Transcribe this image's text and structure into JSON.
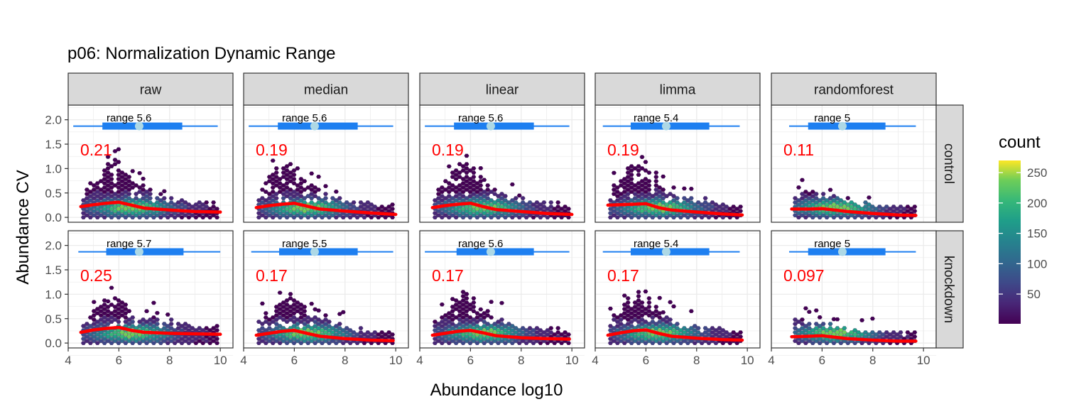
{
  "chart_data": {
    "type": "heatmap",
    "subtype": "faceted hexbin density with smooth trend and range boxplot",
    "title": "p06: Normalization Dynamic Range",
    "xlabel": "Abundance log10",
    "ylabel": "Abundance CV",
    "xlim": [
      4,
      10.5
    ],
    "ylim": [
      -0.1,
      2.3
    ],
    "x_ticks": [
      4,
      6,
      8,
      10
    ],
    "y_ticks": [
      0.0,
      0.5,
      1.0,
      1.5,
      2.0
    ],
    "x_tick_labels": [
      "4",
      "6",
      "8",
      "10"
    ],
    "y_tick_labels": [
      "0.0",
      "0.5",
      "1.0",
      "1.5",
      "2.0"
    ],
    "grid": true,
    "columns": [
      "raw",
      "median",
      "linear",
      "limma",
      "randomforest"
    ],
    "rows": [
      "control",
      "knockdown"
    ],
    "cv_color": "#ff0000",
    "trend_color": "#ff0000",
    "boxplot_color": "#1e7ff0",
    "median_point_color": "#add8e6",
    "legend": {
      "title": "count",
      "position": "right",
      "ticks": [
        50,
        100,
        150,
        200,
        250
      ],
      "tick_labels": [
        "50",
        "100",
        "150",
        "200",
        "250"
      ],
      "range": [
        1,
        270
      ],
      "palette": "viridis"
    },
    "panels": [
      {
        "row": "control",
        "column": "raw",
        "range_label": "range 5.6",
        "median_cv": "0.21",
        "box": {
          "min": 4.2,
          "q1": 5.35,
          "median": 6.8,
          "q3": 8.5,
          "max": 9.9
        },
        "trend": [
          [
            4.5,
            0.22
          ],
          [
            5.0,
            0.26
          ],
          [
            5.5,
            0.29
          ],
          [
            6.0,
            0.31
          ],
          [
            6.5,
            0.25
          ],
          [
            7.0,
            0.19
          ],
          [
            8.0,
            0.15
          ],
          [
            9.0,
            0.12
          ],
          [
            10.0,
            0.11
          ]
        ],
        "cloud": {
          "x_min": 4.6,
          "x_max": 9.95,
          "peak": 1.3,
          "peak_x": 5.8,
          "tail": 0.12
        }
      },
      {
        "row": "control",
        "column": "median",
        "range_label": "range 5.6",
        "median_cv": "0.19",
        "box": {
          "min": 4.2,
          "q1": 5.35,
          "median": 6.8,
          "q3": 8.5,
          "max": 9.9
        },
        "trend": [
          [
            4.5,
            0.2
          ],
          [
            5.0,
            0.24
          ],
          [
            5.5,
            0.27
          ],
          [
            6.0,
            0.29
          ],
          [
            6.5,
            0.23
          ],
          [
            7.0,
            0.17
          ],
          [
            8.0,
            0.13
          ],
          [
            9.0,
            0.09
          ],
          [
            10.0,
            0.06
          ]
        ],
        "cloud": {
          "x_min": 4.6,
          "x_max": 9.95,
          "peak": 1.3,
          "peak_x": 5.8,
          "tail": 0.09
        }
      },
      {
        "row": "control",
        "column": "linear",
        "range_label": "range 5.6",
        "median_cv": "0.19",
        "box": {
          "min": 4.2,
          "q1": 5.35,
          "median": 6.8,
          "q3": 8.5,
          "max": 9.9
        },
        "trend": [
          [
            4.5,
            0.2
          ],
          [
            5.0,
            0.24
          ],
          [
            5.5,
            0.27
          ],
          [
            6.0,
            0.29
          ],
          [
            6.5,
            0.22
          ],
          [
            7.0,
            0.16
          ],
          [
            8.0,
            0.12
          ],
          [
            9.0,
            0.08
          ],
          [
            10.0,
            0.06
          ]
        ],
        "cloud": {
          "x_min": 4.6,
          "x_max": 9.95,
          "peak": 1.3,
          "peak_x": 5.8,
          "tail": 0.09
        }
      },
      {
        "row": "control",
        "column": "limma",
        "range_label": "range 5.4",
        "median_cv": "0.19",
        "box": {
          "min": 4.3,
          "q1": 5.4,
          "median": 6.8,
          "q3": 8.5,
          "max": 9.7
        },
        "trend": [
          [
            4.5,
            0.25
          ],
          [
            5.0,
            0.26
          ],
          [
            5.5,
            0.27
          ],
          [
            6.0,
            0.28
          ],
          [
            6.5,
            0.2
          ],
          [
            7.0,
            0.15
          ],
          [
            8.0,
            0.11
          ],
          [
            9.0,
            0.07
          ],
          [
            9.8,
            0.05
          ]
        ],
        "cloud": {
          "x_min": 4.6,
          "x_max": 9.8,
          "peak": 1.3,
          "peak_x": 5.8,
          "tail": 0.08
        }
      },
      {
        "row": "control",
        "column": "randomforest",
        "range_label": "range 5",
        "median_cv": "0.11",
        "box": {
          "min": 4.7,
          "q1": 5.45,
          "median": 6.8,
          "q3": 8.5,
          "max": 9.7
        },
        "trend": [
          [
            4.8,
            0.17
          ],
          [
            5.5,
            0.17
          ],
          [
            6.0,
            0.18
          ],
          [
            6.5,
            0.15
          ],
          [
            7.0,
            0.12
          ],
          [
            8.0,
            0.08
          ],
          [
            9.0,
            0.05
          ],
          [
            9.7,
            0.04
          ]
        ],
        "cloud": {
          "x_min": 4.8,
          "x_max": 9.7,
          "peak": 0.6,
          "peak_x": 6.0,
          "tail": 0.06
        }
      },
      {
        "row": "knockdown",
        "column": "raw",
        "range_label": "range 5.7",
        "median_cv": "0.25",
        "box": {
          "min": 4.4,
          "q1": 5.5,
          "median": 6.8,
          "q3": 8.55,
          "max": 10.0
        },
        "trend": [
          [
            4.5,
            0.22
          ],
          [
            5.0,
            0.27
          ],
          [
            5.5,
            0.3
          ],
          [
            6.0,
            0.32
          ],
          [
            6.5,
            0.26
          ],
          [
            7.0,
            0.22
          ],
          [
            8.0,
            0.2
          ],
          [
            9.0,
            0.19
          ],
          [
            10.0,
            0.18
          ]
        ],
        "cloud": {
          "x_min": 4.6,
          "x_max": 10.0,
          "peak": 1.05,
          "peak_x": 5.8,
          "tail": 0.2
        }
      },
      {
        "row": "knockdown",
        "column": "median",
        "range_label": "range 5.5",
        "median_cv": "0.17",
        "box": {
          "min": 4.3,
          "q1": 5.4,
          "median": 6.8,
          "q3": 8.5,
          "max": 9.9
        },
        "trend": [
          [
            4.5,
            0.16
          ],
          [
            5.0,
            0.2
          ],
          [
            5.5,
            0.24
          ],
          [
            6.0,
            0.26
          ],
          [
            6.5,
            0.2
          ],
          [
            7.0,
            0.14
          ],
          [
            8.0,
            0.09
          ],
          [
            9.0,
            0.06
          ],
          [
            9.9,
            0.05
          ]
        ],
        "cloud": {
          "x_min": 4.6,
          "x_max": 9.9,
          "peak": 1.1,
          "peak_x": 5.8,
          "tail": 0.07
        }
      },
      {
        "row": "knockdown",
        "column": "linear",
        "range_label": "range 5.6",
        "median_cv": "0.17",
        "box": {
          "min": 4.2,
          "q1": 5.45,
          "median": 6.8,
          "q3": 8.5,
          "max": 9.9
        },
        "trend": [
          [
            4.5,
            0.16
          ],
          [
            5.0,
            0.2
          ],
          [
            5.5,
            0.24
          ],
          [
            6.0,
            0.26
          ],
          [
            6.5,
            0.21
          ],
          [
            7.0,
            0.15
          ],
          [
            8.0,
            0.11
          ],
          [
            9.0,
            0.09
          ],
          [
            9.9,
            0.08
          ]
        ],
        "cloud": {
          "x_min": 4.6,
          "x_max": 9.9,
          "peak": 1.1,
          "peak_x": 5.8,
          "tail": 0.1
        }
      },
      {
        "row": "knockdown",
        "column": "limma",
        "range_label": "range 5.4",
        "median_cv": "0.17",
        "box": {
          "min": 4.3,
          "q1": 5.4,
          "median": 6.8,
          "q3": 8.5,
          "max": 9.7
        },
        "trend": [
          [
            4.5,
            0.16
          ],
          [
            5.0,
            0.21
          ],
          [
            5.5,
            0.25
          ],
          [
            6.0,
            0.27
          ],
          [
            6.5,
            0.2
          ],
          [
            7.0,
            0.14
          ],
          [
            8.0,
            0.1
          ],
          [
            9.0,
            0.07
          ],
          [
            9.8,
            0.06
          ]
        ],
        "cloud": {
          "x_min": 4.6,
          "x_max": 9.8,
          "peak": 1.1,
          "peak_x": 5.8,
          "tail": 0.08
        }
      },
      {
        "row": "knockdown",
        "column": "randomforest",
        "range_label": "range 5",
        "median_cv": "0.097",
        "box": {
          "min": 4.7,
          "q1": 5.45,
          "median": 6.8,
          "q3": 8.5,
          "max": 9.7
        },
        "trend": [
          [
            4.8,
            0.13
          ],
          [
            5.5,
            0.14
          ],
          [
            6.0,
            0.15
          ],
          [
            6.5,
            0.12
          ],
          [
            7.0,
            0.09
          ],
          [
            8.0,
            0.06
          ],
          [
            9.0,
            0.04
          ],
          [
            9.7,
            0.04
          ]
        ],
        "cloud": {
          "x_min": 4.8,
          "x_max": 9.7,
          "peak": 0.45,
          "peak_x": 6.0,
          "tail": 0.05
        }
      }
    ]
  }
}
